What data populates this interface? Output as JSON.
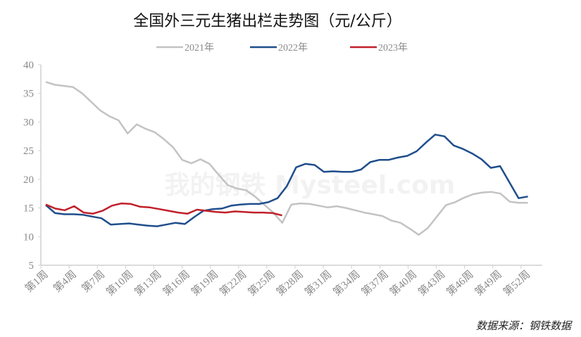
{
  "chart_data": {
    "type": "line",
    "title": "全国外三元生猪出栏走势图（元/公斤）",
    "source": "数据来源：钢铁数据",
    "watermark": "我的钢铁 Mysteel.com",
    "ylim": [
      5,
      40
    ],
    "yticks": [
      5,
      10,
      15,
      20,
      25,
      30,
      35,
      40
    ],
    "xtick_labels": [
      "第1周",
      "第4周",
      "第7周",
      "第10周",
      "第13周",
      "第16周",
      "第19周",
      "第22周",
      "第25周",
      "第28周",
      "第31周",
      "第34周",
      "第37周",
      "第40周",
      "第43周",
      "第46周",
      "第49周",
      "第52周"
    ],
    "grid": false,
    "legend": "top",
    "series": [
      {
        "name": "2021年",
        "color": "#c3c3c3",
        "values": [
          37,
          36.5,
          36.3,
          36.1,
          35,
          33.5,
          32,
          31,
          30.3,
          28,
          29.6,
          28.8,
          28.2,
          27,
          25.6,
          23.4,
          22.8,
          23.5,
          22.7,
          20.8,
          19,
          18.4,
          18.1,
          17,
          15.6,
          14.2,
          12.4,
          15.6,
          15.8,
          15.7,
          15.4,
          15.1,
          15.3,
          15,
          14.6,
          14.2,
          13.9,
          13.6,
          12.8,
          12.4,
          11.4,
          10.3,
          11.5,
          13.5,
          15.5,
          16,
          16.8,
          17.4,
          17.7,
          17.8,
          17.5,
          16.1,
          15.9,
          15.9
        ]
      },
      {
        "name": "2022年",
        "color": "#1f4e8c",
        "values": [
          15.5,
          14.1,
          13.9,
          13.9,
          13.8,
          13.5,
          13.2,
          12.1,
          12.2,
          12.3,
          12.1,
          11.9,
          11.8,
          12.1,
          12.4,
          12.2,
          13.4,
          14.5,
          14.8,
          14.9,
          15.4,
          15.6,
          15.7,
          15.7,
          16.0,
          16.7,
          18.8,
          22.1,
          22.7,
          22.5,
          21.3,
          21.4,
          21.3,
          21.3,
          21.7,
          23.0,
          23.4,
          23.4,
          23.8,
          24.1,
          24.9,
          26.4,
          27.8,
          27.5,
          25.9,
          25.3,
          24.5,
          23.5,
          22.0,
          22.3,
          19.5,
          16.7,
          17.0
        ]
      },
      {
        "name": "2023年",
        "color": "#c0202a",
        "values": [
          15.6,
          14.9,
          14.6,
          15.3,
          14.2,
          14.0,
          14.5,
          15.4,
          15.8,
          15.7,
          15.2,
          15.1,
          14.8,
          14.5,
          14.2,
          14.0,
          14.7,
          14.5,
          14.3,
          14.2,
          14.4,
          14.3,
          14.2,
          14.2,
          14.1,
          13.7
        ]
      }
    ]
  }
}
